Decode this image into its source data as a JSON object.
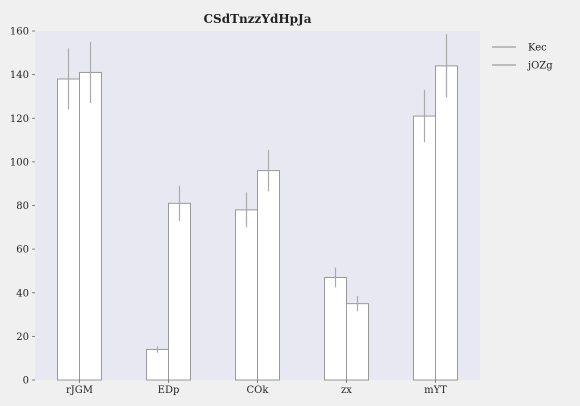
{
  "chart_data": {
    "type": "bar",
    "title": "CSdTnzzYdHpJa",
    "xlabel": "",
    "ylabel": "",
    "categories": [
      "rJGM",
      "EDp",
      "COk",
      "zx",
      "mYT"
    ],
    "ylim": [
      0,
      160
    ],
    "yticks": [
      0,
      20,
      40,
      60,
      80,
      100,
      120,
      140,
      160
    ],
    "grid": false,
    "legend_position": "top-right",
    "series": [
      {
        "name": "Kec",
        "values": [
          138,
          14,
          78,
          47,
          121
        ],
        "errors": [
          14,
          1.5,
          8,
          4.5,
          12
        ]
      },
      {
        "name": "jOZg",
        "values": [
          141,
          81,
          96,
          35,
          144
        ],
        "errors": [
          14,
          8,
          9.5,
          3.5,
          14.5
        ]
      }
    ]
  },
  "colors": {
    "plot_background": "#e8e8f2",
    "page_background": "#f0f0f0",
    "bar_fill": "#ffffff",
    "bar_edge": "#999999",
    "error_bar": "#aaaaaa",
    "legend_line": "#aaaaaa",
    "text": "#222222"
  }
}
